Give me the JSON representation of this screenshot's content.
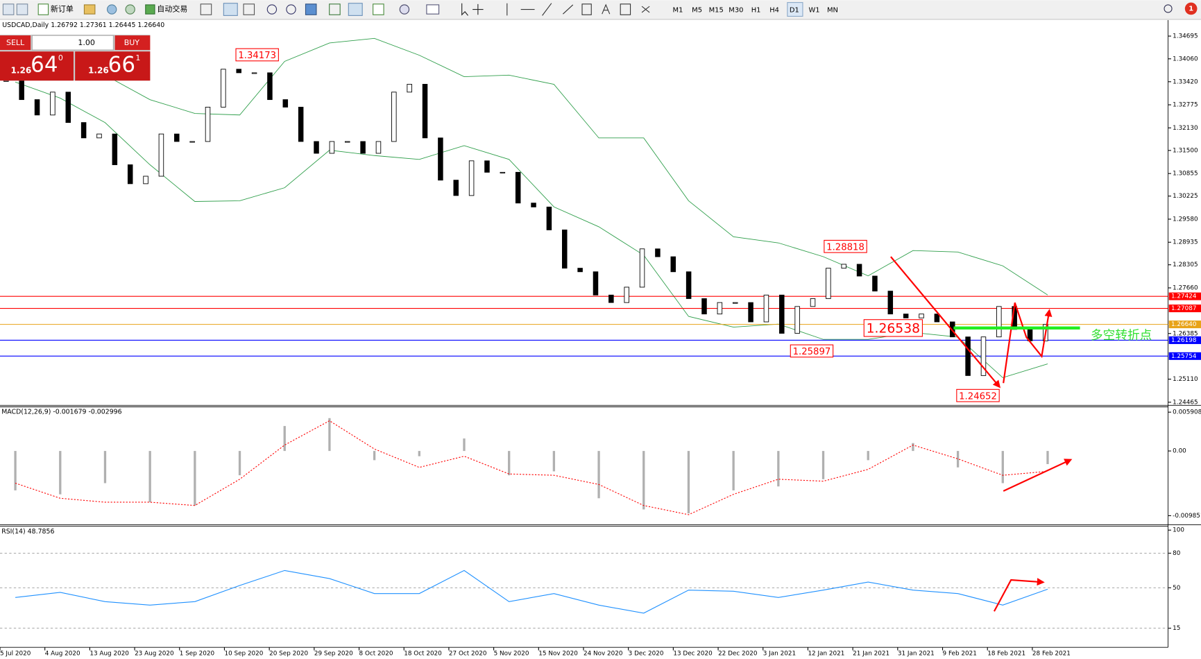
{
  "toolbar": {
    "buttons": [
      "新订单",
      "自动交易"
    ],
    "timeframes": [
      "M1",
      "M5",
      "M15",
      "M30",
      "H1",
      "H4",
      "D1",
      "W1",
      "MN"
    ],
    "active_timeframe": "D1",
    "notifications": "1"
  },
  "trade_panel": {
    "sell": "SELL",
    "buy": "BUY",
    "lot": "1.00",
    "sell_price": {
      "prefix": "1.26",
      "big": "64",
      "sup": "0"
    },
    "buy_price": {
      "prefix": "1.26",
      "big": "66",
      "sup": "1"
    }
  },
  "chart": {
    "header": "USDCAD,Daily  1.26792 1.27361 1.26445 1.26640",
    "ylim": [
      1.244,
      1.3512
    ],
    "price_ticks": [
      1.34695,
      {
        "value": 1.3406,
        "label": "1.34060"
      },
      {
        "value": 1.3342,
        "label": "1.33420"
      },
      1.32775,
      {
        "value": 1.3213,
        "label": "1.32130"
      },
      {
        "value": 1.315,
        "label": "1.31500"
      },
      1.30855,
      1.30225,
      {
        "value": 1.2958,
        "label": "1.29580"
      },
      1.28935,
      1.28305,
      {
        "value": 1.2766,
        "label": "1.27660"
      },
      1.26385,
      {
        "value": 1.2511,
        "label": "1.25110"
      },
      1.24465
    ],
    "dates": [
      "5 Jul 2020",
      "4 Aug 2020",
      "13 Aug 2020",
      "23 Aug 2020",
      "1 Sep 2020",
      "10 Sep 2020",
      "20 Sep 2020",
      "29 Sep 2020",
      "8 Oct 2020",
      "18 Oct 2020",
      "27 Oct 2020",
      "5 Nov 2020",
      "15 Nov 2020",
      "24 Nov 2020",
      "3 Dec 2020",
      "13 Dec 2020",
      "22 Dec 2020",
      "3 Jan 2021",
      "12 Jan 2021",
      "21 Jan 2021",
      "31 Jan 2021",
      "9 Feb 2021",
      "18 Feb 2021",
      "28 Feb 2021"
    ],
    "close": [
      1.3345,
      1.3292,
      1.3249,
      1.3313,
      1.3228,
      1.3185,
      1.3196,
      1.311,
      1.3057,
      1.3078,
      1.3196,
      1.3175,
      1.3175,
      1.3271,
      1.3377,
      1.3367,
      1.3367,
      1.3292,
      1.3271,
      1.3175,
      1.3142,
      1.3175,
      1.3175,
      1.3142,
      1.3175,
      1.3313,
      1.3335,
      1.3185,
      1.3067,
      1.3024,
      1.3121,
      1.3089,
      1.3089,
      1.3003,
      1.2992,
      1.2928,
      1.2821,
      1.2811,
      1.2746,
      1.2725,
      1.2768,
      1.2875,
      1.2853,
      1.2811,
      1.2736,
      1.2693,
      1.2725,
      1.2725,
      1.2671,
      1.2746,
      1.2639,
      1.2714,
      1.2736,
      1.2821,
      1.2832,
      1.2799,
      1.2757,
      1.2693,
      1.2682,
      1.2693,
      1.2671,
      1.2629,
      1.2521,
      1.2629,
      1.2714,
      1.265,
      1.2618,
      1.2664
    ],
    "bands": {
      "color": "#2e9e4a",
      "upper": [
        1.34288,
        1.33903,
        1.33604,
        1.32919,
        1.32534,
        1.32491,
        1.33989,
        1.34502,
        1.34631,
        1.3416,
        1.33561,
        1.33604,
        1.33347,
        1.31849,
        1.31849,
        1.30094,
        1.29088,
        1.28917,
        1.28532,
        1.27997,
        1.28703,
        1.28661,
        1.28275,
        1.27462
      ],
      "lower": [
        1.33411,
        1.32962,
        1.32277,
        1.311,
        1.30073,
        1.30094,
        1.30458,
        1.31507,
        1.31357,
        1.3125,
        1.31635,
        1.3125,
        1.29923,
        1.29367,
        1.28575,
        1.26863,
        1.26563,
        1.26649,
        1.26221,
        1.26221,
        1.26413,
        1.26285,
        1.25151,
        1.25536
      ]
    },
    "levels": [
      {
        "value": 1.27424,
        "color": "#ff0000"
      },
      {
        "value": 1.27087,
        "color": "#ff0000"
      },
      {
        "value": 1.2664,
        "label": "1.26640",
        "color": "#e8a317"
      },
      {
        "value": 1.26198,
        "color": "#0000ff"
      },
      {
        "value": 1.25754,
        "color": "#0000ff"
      }
    ],
    "annotations": [
      1.34173,
      1.28818,
      1.26538,
      1.25897,
      1.24652
    ],
    "note": "多空转折点"
  },
  "macd": {
    "header": "MACD(12,26,9) -0.001679 -0.002996",
    "ylim": [
      -0.01112,
      0.0066
    ],
    "ticks": [
      0.005908,
      {
        "value": 0,
        "label": "0.00"
      },
      -0.009851
    ],
    "histogram": [
      -0.006,
      -0.0066,
      -0.0049,
      -0.0078,
      -0.0083,
      -0.0037,
      0.0038,
      0.005,
      -0.0014,
      -0.0008,
      0.0019,
      -0.0037,
      -0.0031,
      -0.0072,
      -0.0089,
      -0.0095,
      -0.006,
      -0.0054,
      -0.0043,
      -0.0014,
      0.0012,
      -0.0025,
      -0.0049,
      -0.002
    ],
    "signal": [
      -0.0049,
      -0.0072,
      -0.0078,
      -0.0078,
      -0.0083,
      -0.0043,
      0.0009,
      0.0046,
      0.0003,
      -0.0025,
      -0.0008,
      -0.0035,
      -0.0037,
      -0.0051,
      -0.0083,
      -0.0097,
      -0.0066,
      -0.0043,
      -0.0046,
      -0.0028,
      0.0009,
      -0.0012,
      -0.0037,
      -0.0031
    ]
  },
  "rsi": {
    "header": "RSI(14) 48.7856",
    "ylim": [
      -1.6,
      103.3
    ],
    "ticks": [
      100,
      80,
      50,
      15
    ],
    "values": [
      41.6,
      46,
      38,
      35,
      38,
      52,
      65,
      58,
      45,
      45,
      65,
      38,
      45,
      35,
      28,
      48,
      47,
      41.6,
      48,
      55,
      48,
      45,
      35,
      48.8
    ]
  }
}
